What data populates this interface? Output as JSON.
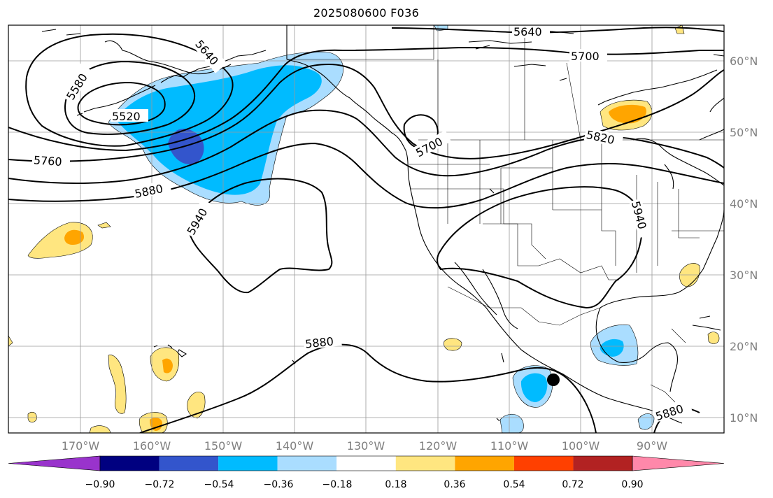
{
  "title": "2025080600 F036",
  "lat_labels": [
    "60°N",
    "50°N",
    "40°N",
    "30°N",
    "20°N",
    "10°N"
  ],
  "lon_labels": [
    "170°W",
    "160°W",
    "150°W",
    "140°W",
    "130°W",
    "120°W",
    "110°W",
    "100°W",
    "90°W"
  ],
  "contour_labels": [
    "5640",
    "5700",
    "5580",
    "5640",
    "5520",
    "5760",
    "5880",
    "5940",
    "5700",
    "5820",
    "5940",
    "5880",
    "5880"
  ],
  "colorbar": {
    "ticks": [
      "−0.90",
      "−0.72",
      "−0.54",
      "−0.36",
      "−0.18",
      "0.18",
      "0.36",
      "0.54",
      "0.72",
      "0.90"
    ],
    "colors": [
      "#9933cc",
      "#000080",
      "#3355cc",
      "#00bbff",
      "#aaddff",
      "#ffffff",
      "#ffe680",
      "#ffa500",
      "#ff4000",
      "#b22222",
      "#ff88aa"
    ]
  },
  "marker": "storm-center-dot"
}
